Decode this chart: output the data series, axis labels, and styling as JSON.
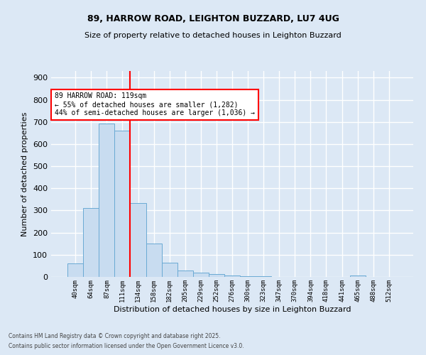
{
  "title1": "89, HARROW ROAD, LEIGHTON BUZZARD, LU7 4UG",
  "title2": "Size of property relative to detached houses in Leighton Buzzard",
  "xlabel": "Distribution of detached houses by size in Leighton Buzzard",
  "ylabel": "Number of detached properties",
  "footnote1": "Contains HM Land Registry data © Crown copyright and database right 2025.",
  "footnote2": "Contains public sector information licensed under the Open Government Licence v3.0.",
  "bin_labels": [
    "40sqm",
    "64sqm",
    "87sqm",
    "111sqm",
    "134sqm",
    "158sqm",
    "182sqm",
    "205sqm",
    "229sqm",
    "252sqm",
    "276sqm",
    "300sqm",
    "323sqm",
    "347sqm",
    "370sqm",
    "394sqm",
    "418sqm",
    "441sqm",
    "465sqm",
    "488sqm",
    "512sqm"
  ],
  "bar_values": [
    60,
    310,
    693,
    660,
    335,
    152,
    65,
    30,
    20,
    12,
    5,
    3,
    2,
    1,
    0,
    0,
    0,
    0,
    5,
    0,
    0
  ],
  "bar_color": "#c8dcf0",
  "bar_edge_color": "#6aaad4",
  "vline_x": 3.5,
  "vline_color": "red",
  "annotation_text": "89 HARROW ROAD: 119sqm\n← 55% of detached houses are smaller (1,282)\n44% of semi-detached houses are larger (1,036) →",
  "annotation_box_color": "white",
  "annotation_box_edge": "red",
  "ylim": [
    0,
    930
  ],
  "yticks": [
    0,
    100,
    200,
    300,
    400,
    500,
    600,
    700,
    800,
    900
  ],
  "background_color": "#dce8f5",
  "grid_color": "white",
  "figsize": [
    6.0,
    5.0
  ],
  "dpi": 100
}
